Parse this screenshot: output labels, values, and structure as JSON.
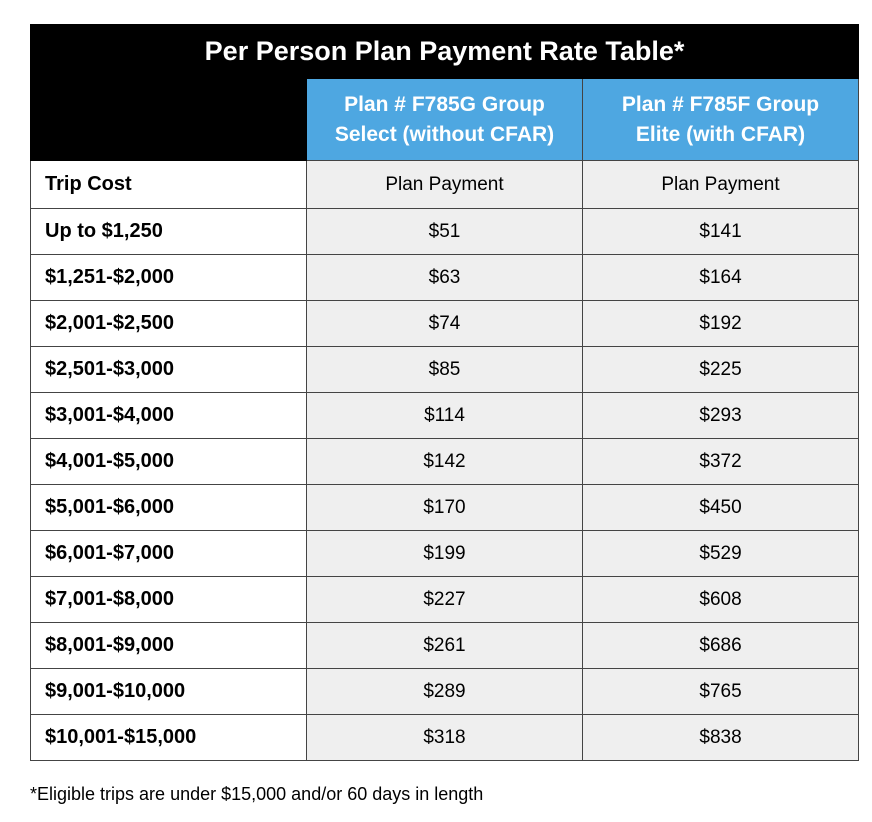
{
  "table": {
    "title": "Per Person Plan Payment Rate Table*",
    "plans": [
      [
        "Plan # F785G Group",
        "Select (without CFAR)"
      ],
      [
        "Plan # F785F Group",
        "Elite (with CFAR)"
      ]
    ],
    "columns": [
      "Trip Cost",
      "Plan Payment",
      "Plan Payment"
    ],
    "rows": [
      [
        "Up to $1,250",
        "$51",
        "$141"
      ],
      [
        "$1,251-$2,000",
        "$63",
        "$164"
      ],
      [
        "$2,001-$2,500",
        "$74",
        "$192"
      ],
      [
        "$2,501-$3,000",
        "$85",
        "$225"
      ],
      [
        "$3,001-$4,000",
        "$114",
        "$293"
      ],
      [
        "$4,001-$5,000",
        "$142",
        "$372"
      ],
      [
        "$5,001-$6,000",
        "$170",
        "$450"
      ],
      [
        "$6,001-$7,000",
        "$199",
        "$529"
      ],
      [
        "$7,001-$8,000",
        "$227",
        "$608"
      ],
      [
        "$8,001-$9,000",
        "$261",
        "$686"
      ],
      [
        "$9,001-$10,000",
        "$289",
        "$765"
      ],
      [
        "$10,001-$15,000",
        "$318",
        "$838"
      ]
    ],
    "footnote": "*Eligible trips are under $15,000 and/or 60 days in length"
  }
}
